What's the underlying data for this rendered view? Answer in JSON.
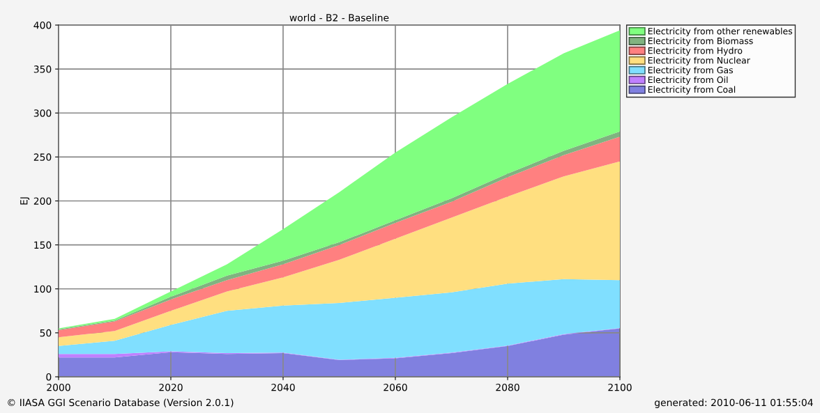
{
  "chart_data": {
    "type": "area",
    "stacked": true,
    "title": "world - B2 - Baseline",
    "ylabel": "EJ",
    "x": [
      2000,
      2010,
      2020,
      2030,
      2040,
      2050,
      2060,
      2070,
      2080,
      2090,
      2100
    ],
    "xlim": [
      2000,
      2100
    ],
    "xticks": [
      2000,
      2020,
      2040,
      2060,
      2080,
      2100
    ],
    "ylim": [
      0,
      400
    ],
    "yticks": [
      0,
      50,
      100,
      150,
      200,
      250,
      300,
      350,
      400
    ],
    "grid": true,
    "legend": "top right",
    "series": [
      {
        "name": "Electricity from Coal",
        "color": "#8080e0",
        "values": [
          22,
          22,
          28,
          26,
          27,
          19,
          21,
          27,
          35,
          48,
          55
        ]
      },
      {
        "name": "Electricity from Oil",
        "color": "#c080ff",
        "values": [
          4,
          4,
          1,
          1,
          0.5,
          0.5,
          0.5,
          0.5,
          0.5,
          0.5,
          0.5
        ]
      },
      {
        "name": "Electricity from Gas",
        "color": "#80dfff",
        "values": [
          9,
          15,
          30,
          48,
          53.5,
          64.5,
          68.5,
          68.5,
          70.5,
          62.5,
          54.5
        ]
      },
      {
        "name": "Electricity from Nuclear",
        "color": "#ffdf80",
        "values": [
          10,
          11,
          16,
          22,
          32,
          49,
          67,
          85,
          99,
          117,
          135
        ]
      },
      {
        "name": "Electricity from Hydro",
        "color": "#ff8080",
        "values": [
          8,
          11,
          13,
          13,
          15,
          17,
          18,
          18,
          22,
          24,
          28
        ]
      },
      {
        "name": "Electricity from Biomass",
        "color": "#80b380",
        "values": [
          1,
          1,
          3,
          5,
          4,
          3,
          3,
          4,
          4,
          5,
          6
        ]
      },
      {
        "name": "Electricity from other renewables",
        "color": "#80ff80",
        "values": [
          1,
          2,
          6,
          13,
          36,
          57,
          77,
          92,
          102,
          111,
          115
        ]
      }
    ],
    "annotations": [
      "© IIASA GGI Scenario Database (Version 2.0.1)",
      "generated: 2010-06-11 01:55:04"
    ]
  }
}
